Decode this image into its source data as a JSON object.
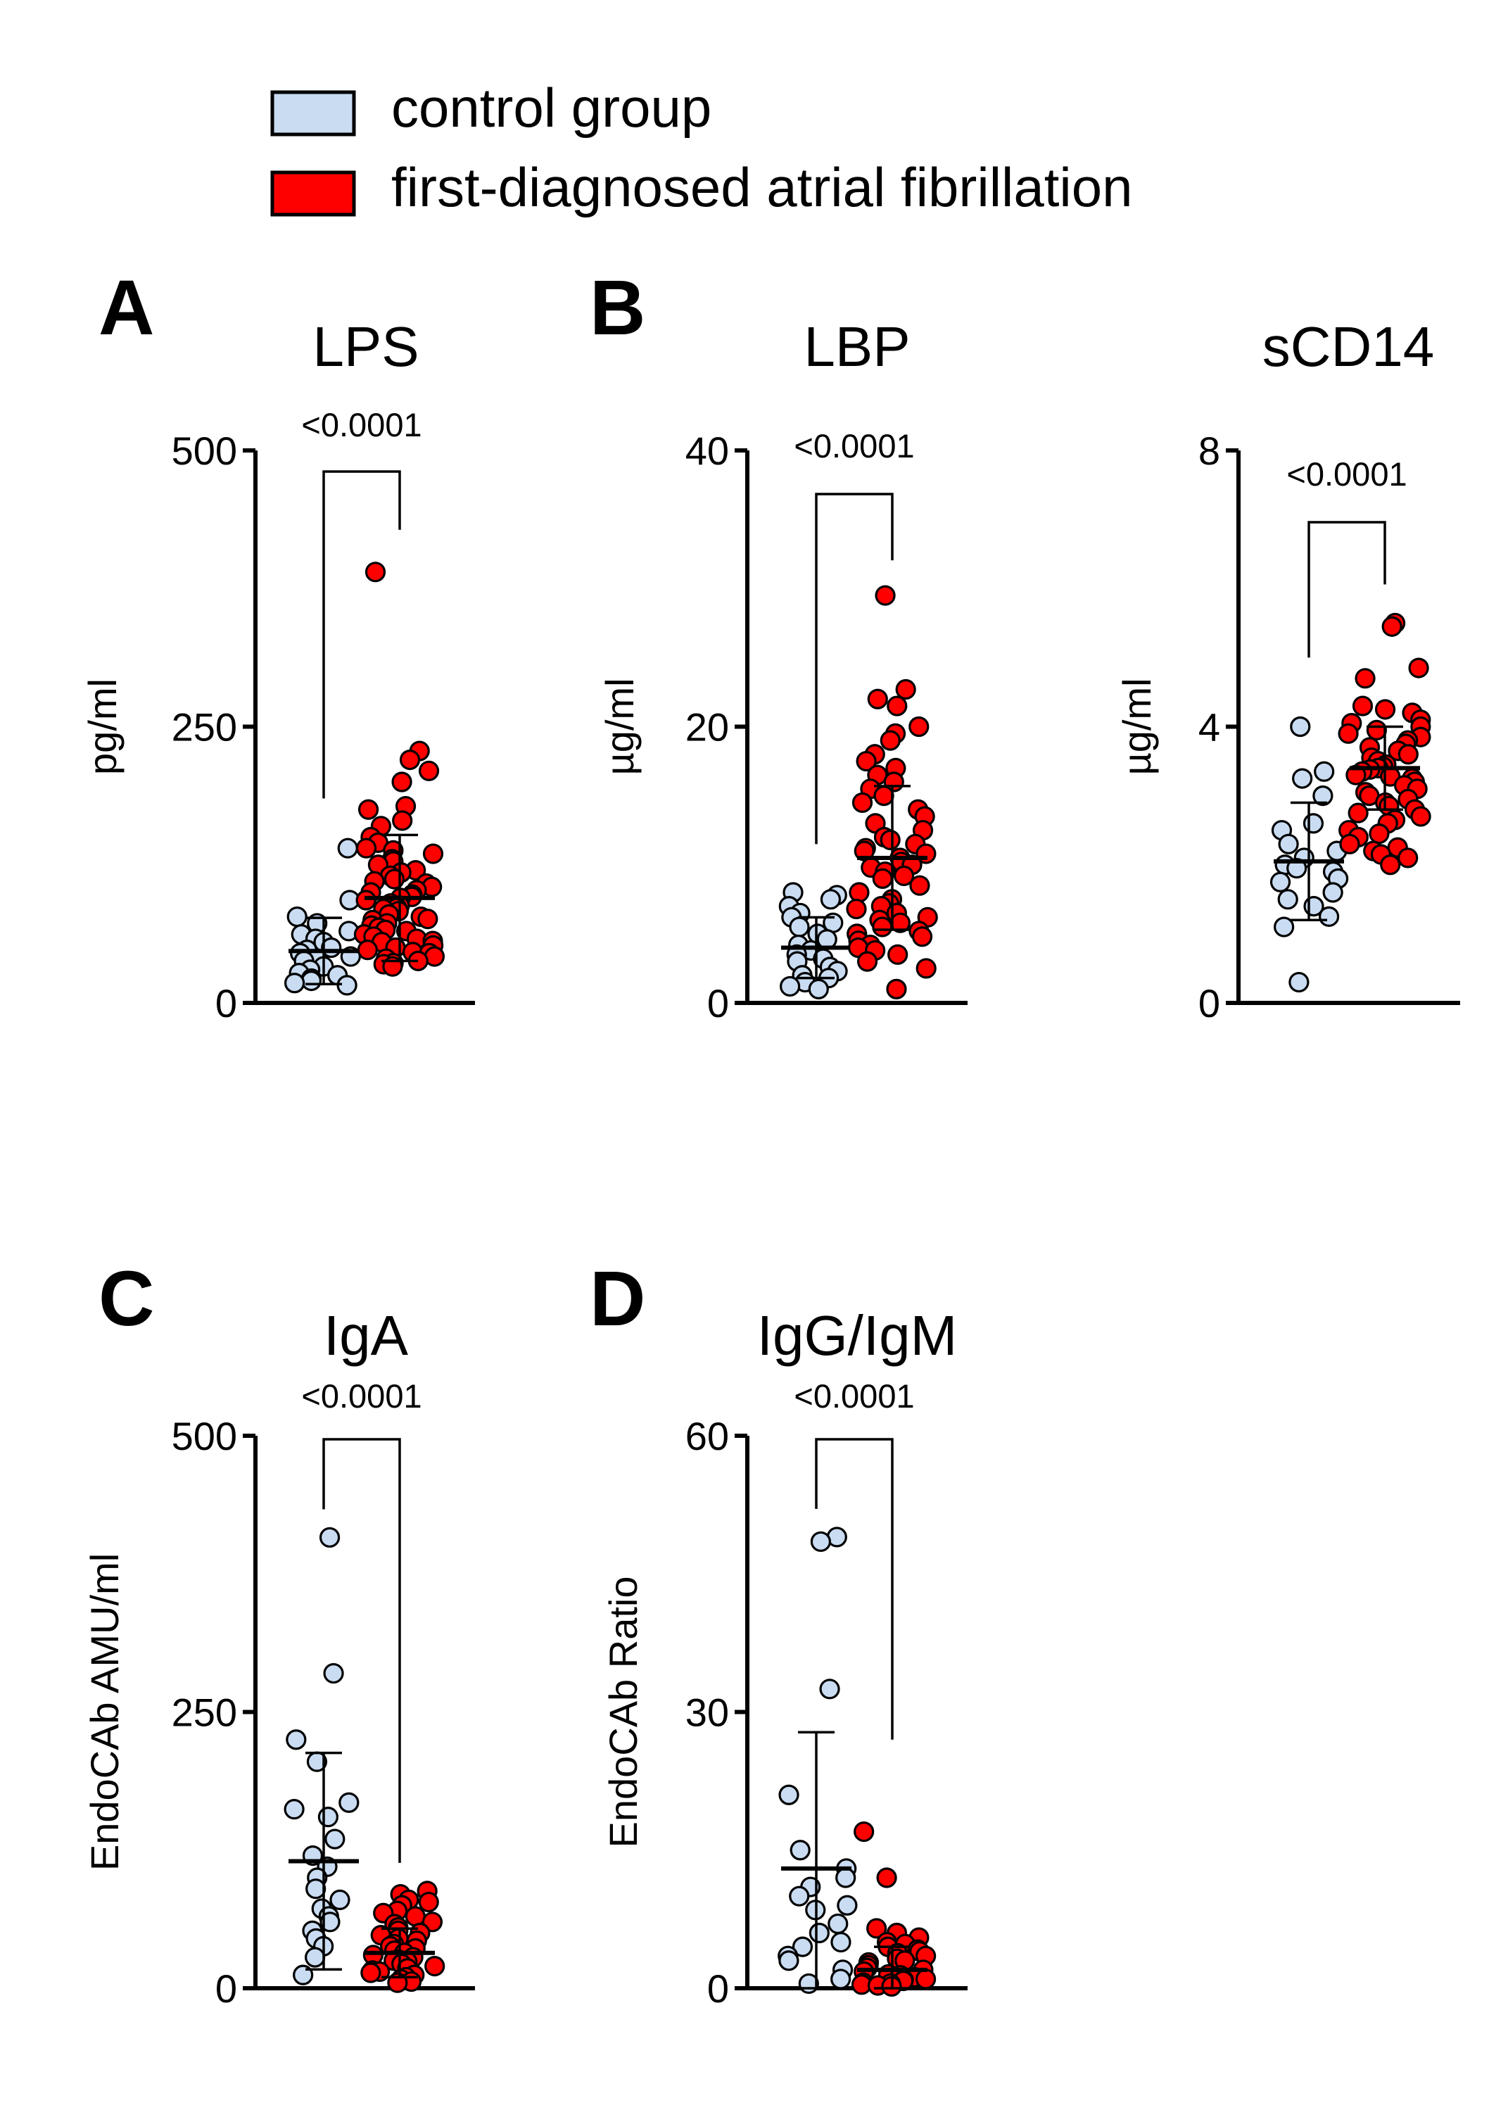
{
  "legend": {
    "items": [
      {
        "label": "control group",
        "color": "#c9dcf2"
      },
      {
        "label": "first-diagnosed atrial fibrillation",
        "color": "#ff0000"
      }
    ]
  },
  "panel_letters": [
    "A",
    "B",
    "C",
    "D"
  ],
  "chart_data": [
    {
      "type": "scatter",
      "panel": "A",
      "title": "LPS",
      "ylabel": "pg/ml",
      "ylim": [
        0,
        500
      ],
      "yticks": [
        0,
        250,
        500
      ],
      "ytick_labels": [
        "0",
        "250",
        "500"
      ],
      "p_value": "<0.0001",
      "series": [
        {
          "name": "control group",
          "mean": 47,
          "sd": 30,
          "values": [
            140,
            93,
            78,
            72,
            65,
            62,
            58,
            55,
            50,
            48,
            45,
            42,
            40,
            38,
            33,
            30,
            27,
            25,
            22,
            20,
            18,
            16
          ]
        },
        {
          "name": "first-diagnosed atrial fibrillation",
          "mean": 95,
          "sd": 57,
          "values": [
            390,
            228,
            220,
            210,
            200,
            178,
            175,
            165,
            160,
            150,
            145,
            140,
            138,
            135,
            130,
            128,
            125,
            120,
            118,
            115,
            112,
            110,
            108,
            105,
            102,
            100,
            98,
            96,
            95,
            93,
            90,
            88,
            86,
            85,
            83,
            80,
            78,
            76,
            75,
            72,
            70,
            68,
            66,
            65,
            62,
            60,
            58,
            56,
            55,
            52,
            50,
            48,
            46,
            45,
            42,
            40,
            38,
            36,
            35,
            33
          ]
        }
      ]
    },
    {
      "type": "scatter",
      "panel": "B",
      "title": "LBP",
      "ylabel": "µg/ml",
      "ylim": [
        0,
        40
      ],
      "yticks": [
        0,
        20,
        40
      ],
      "ytick_labels": [
        "0",
        "20",
        "40"
      ],
      "p_value": "<0.0001",
      "series": [
        {
          "name": "control group",
          "mean": 4.0,
          "sd": 2.2,
          "values": [
            8.0,
            7.8,
            7.5,
            7.0,
            6.5,
            6.2,
            5.8,
            5.5,
            5.0,
            4.6,
            4.2,
            3.8,
            3.5,
            3.2,
            3.0,
            2.6,
            2.3,
            2.0,
            1.8,
            1.5,
            1.2,
            1.0
          ]
        },
        {
          "name": "first-diagnosed atrial fibrillation",
          "mean": 10.5,
          "sd": 5.2,
          "values": [
            29.5,
            22.7,
            22.0,
            21.5,
            20.0,
            19.5,
            19.0,
            18.0,
            17.5,
            17.0,
            16.5,
            16.0,
            15.5,
            15.0,
            14.5,
            14.0,
            13.5,
            13.0,
            12.5,
            12.0,
            11.8,
            11.5,
            11.2,
            11.0,
            10.8,
            10.5,
            10.2,
            10.0,
            9.8,
            9.5,
            9.2,
            9.0,
            8.5,
            8.0,
            7.5,
            7.2,
            7.0,
            6.8,
            6.5,
            6.2,
            6.0,
            5.8,
            5.5,
            5.2,
            5.0,
            4.8,
            4.5,
            4.2,
            4.0,
            3.8,
            3.5,
            3.0,
            2.5,
            1.0
          ]
        }
      ]
    },
    {
      "type": "scatter",
      "panel": "B",
      "title": "sCD14",
      "ylabel": "µg/ml",
      "ylim": [
        0,
        8
      ],
      "yticks": [
        0,
        4,
        8
      ],
      "ytick_labels": [
        "0",
        "4",
        "8"
      ],
      "p_value": "<0.0001",
      "series": [
        {
          "name": "control group",
          "mean": 2.05,
          "sd": 0.85,
          "values": [
            4.0,
            3.35,
            3.25,
            3.0,
            2.6,
            2.5,
            2.3,
            2.2,
            2.1,
            2.0,
            1.95,
            1.9,
            1.8,
            1.75,
            1.6,
            1.5,
            1.4,
            1.25,
            1.1,
            0.3
          ]
        },
        {
          "name": "first-diagnosed atrial fibrillation",
          "mean": 3.4,
          "sd": 0.6,
          "values": [
            5.5,
            5.45,
            4.85,
            4.7,
            4.3,
            4.25,
            4.2,
            4.1,
            4.05,
            4.0,
            3.95,
            3.9,
            3.85,
            3.8,
            3.75,
            3.7,
            3.65,
            3.6,
            3.55,
            3.5,
            3.45,
            3.42,
            3.4,
            3.38,
            3.35,
            3.3,
            3.28,
            3.25,
            3.2,
            3.15,
            3.1,
            3.05,
            3.0,
            2.95,
            2.9,
            2.85,
            2.8,
            2.75,
            2.7,
            2.65,
            2.6,
            2.5,
            2.45,
            2.4,
            2.3,
            2.25,
            2.2,
            2.15,
            2.1,
            2.0
          ]
        }
      ]
    },
    {
      "type": "scatter",
      "panel": "C",
      "title": "IgA",
      "ylabel": "EndoCAb AMU/ml",
      "ylim": [
        0,
        500
      ],
      "yticks": [
        0,
        250,
        500
      ],
      "ytick_labels": [
        "0",
        "250",
        "500"
      ],
      "p_value": "<0.0001",
      "series": [
        {
          "name": "control group",
          "mean": 115,
          "sd": 98,
          "values": [
            408,
            285,
            225,
            205,
            168,
            162,
            155,
            135,
            120,
            110,
            100,
            90,
            80,
            72,
            65,
            60,
            52,
            45,
            38,
            28,
            12
          ]
        },
        {
          "name": "first-diagnosed atrial fibrillation",
          "mean": 32,
          "sd": 22,
          "values": [
            88,
            85,
            80,
            78,
            75,
            70,
            68,
            65,
            60,
            58,
            55,
            52,
            50,
            48,
            45,
            43,
            40,
            38,
            36,
            34,
            32,
            30,
            28,
            26,
            25,
            24,
            22,
            20,
            18,
            16,
            15,
            14,
            12,
            10,
            8,
            6,
            5
          ]
        }
      ]
    },
    {
      "type": "scatter",
      "panel": "D",
      "title": "IgG/IgM",
      "ylabel": "EndoCAb Ratio",
      "ylim": [
        0,
        60
      ],
      "yticks": [
        0,
        30,
        60
      ],
      "ytick_labels": [
        "0",
        "30",
        "60"
      ],
      "p_value": "<0.0001",
      "series": [
        {
          "name": "control group",
          "mean": 13,
          "sd": 14.8,
          "values": [
            49,
            48.5,
            32.5,
            21,
            15,
            13,
            12,
            11,
            10,
            9,
            8.5,
            7,
            6,
            5,
            4.5,
            3.5,
            3,
            2,
            1,
            0.5
          ]
        },
        {
          "name": "first-diagnosed atrial fibrillation",
          "mean": 2.0,
          "sd": 2.5,
          "values": [
            17,
            12,
            6.5,
            6,
            5.5,
            5,
            4.8,
            4.5,
            4.2,
            4,
            3.8,
            3.5,
            3.2,
            3,
            2.8,
            2.5,
            2.2,
            2,
            1.8,
            1.5,
            1.4,
            1.2,
            1,
            0.9,
            0.8,
            0.6,
            0.5,
            0.4,
            0.3,
            0.2
          ]
        }
      ]
    }
  ]
}
